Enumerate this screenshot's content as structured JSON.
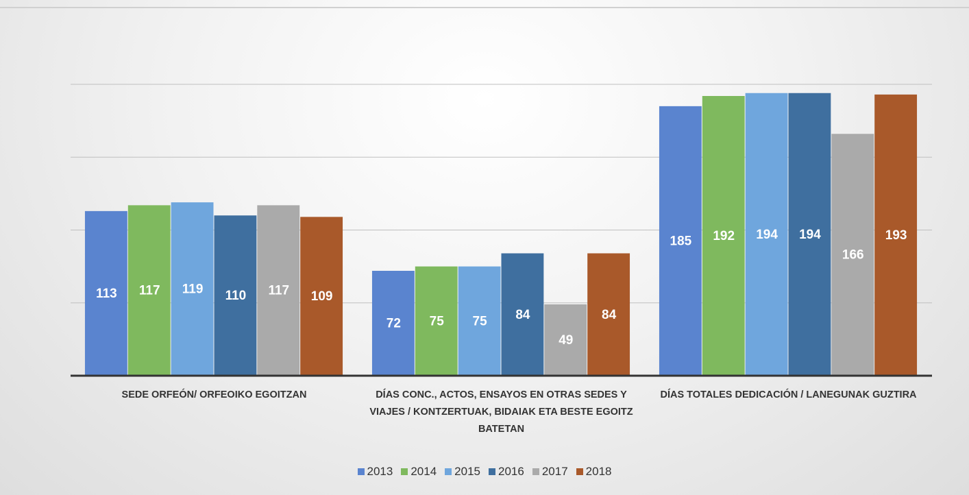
{
  "chart_data": {
    "type": "bar",
    "categories": [
      "SEDE ORFEÓN/ ORFEOIKO EGOITZAN",
      "DÍAS CONC., ACTOS, ENSAYOS EN OTRAS SEDES  Y  VIAJES / KONTZERTUAK, BIDAIAK ETA BESTE EGOITZ BATETAN",
      "DÍAS TOTALES DEDICACIÓN / LANEGUNAK GUZTIRA"
    ],
    "series": [
      {
        "name": "2013",
        "color": "#5a84cf",
        "values": [
          113,
          72,
          185
        ]
      },
      {
        "name": "2014",
        "color": "#7fb95e",
        "values": [
          117,
          75,
          192
        ]
      },
      {
        "name": "2015",
        "color": "#6fa6dd",
        "values": [
          119,
          75,
          194
        ]
      },
      {
        "name": "2016",
        "color": "#3f6f9f",
        "values": [
          110,
          84,
          194
        ]
      },
      {
        "name": "2017",
        "color": "#aaaaaa",
        "values": [
          117,
          49,
          166
        ]
      },
      {
        "name": "2018",
        "color": "#a9592a",
        "values": [
          109,
          84,
          193
        ]
      }
    ],
    "ylim": [
      0,
      200
    ],
    "yticks": [
      50,
      100,
      150,
      200
    ],
    "grid": true,
    "legend": "bottom"
  }
}
